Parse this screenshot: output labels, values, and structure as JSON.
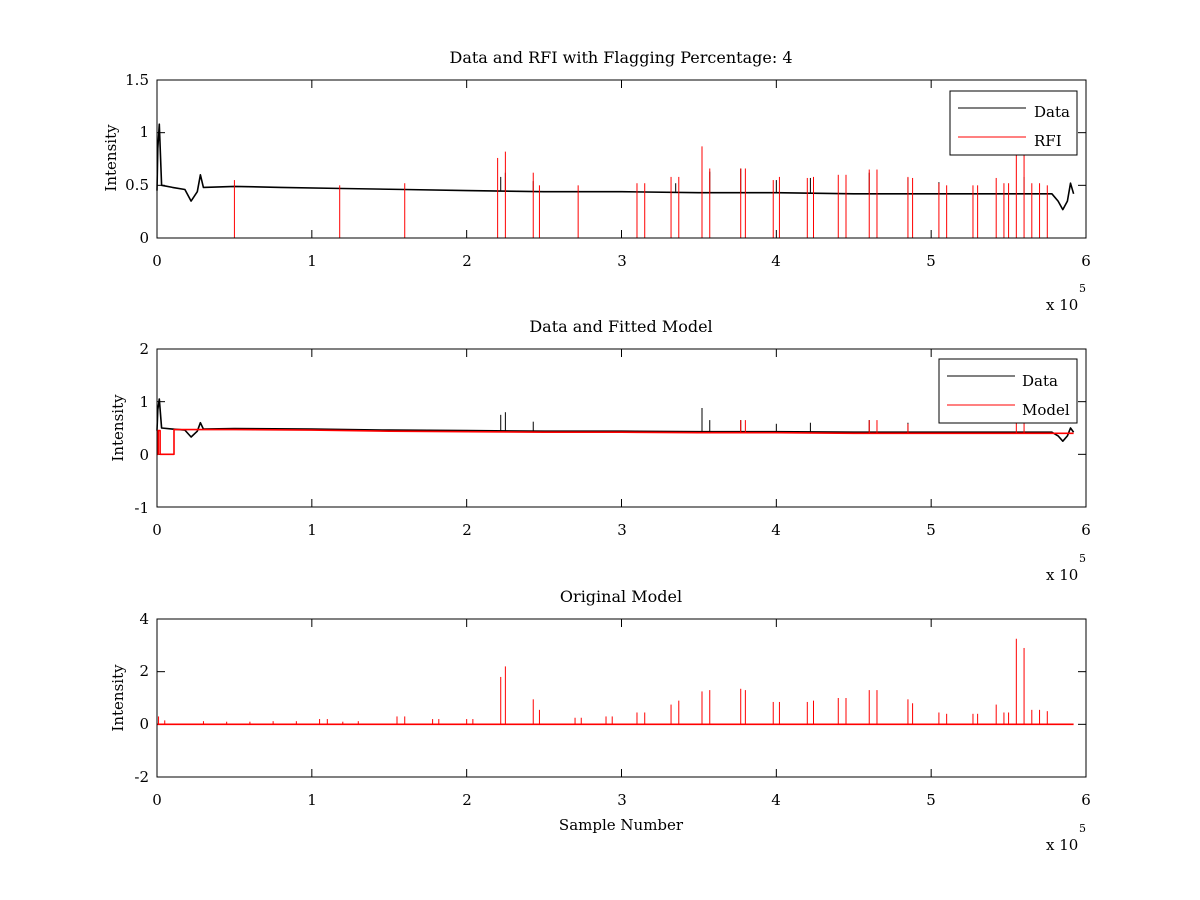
{
  "figure": {
    "background": "#ffffff"
  },
  "colors": {
    "data": "#000000",
    "rfi": "#ff0000",
    "model": "#ff0000",
    "axes": "#000000"
  },
  "chart_data": [
    {
      "type": "line",
      "title": "Data and RFI with Flagging Percentage: 4",
      "xlabel": "",
      "ylabel": "Intensity",
      "xlim": [
        0,
        6
      ],
      "ylim": [
        0,
        1.5
      ],
      "xticks": [
        "0",
        "1",
        "2",
        "3",
        "4",
        "5",
        "6"
      ],
      "yticks": [
        "0",
        "0.5",
        "1",
        "1.5"
      ],
      "x_exponent_label": "x 10",
      "x_exponent_power": "5",
      "legend": {
        "position": "top-right",
        "entries": [
          "Data",
          "RFI"
        ]
      },
      "series": [
        {
          "name": "Data",
          "color": "#000000",
          "baseline": [
            [
              0,
              0.45
            ],
            [
              0.005,
              0.85
            ],
            [
              0.015,
              1.08
            ],
            [
              0.03,
              0.5
            ],
            [
              0.1,
              0.48
            ],
            [
              0.18,
              0.46
            ],
            [
              0.22,
              0.35
            ],
            [
              0.26,
              0.44
            ],
            [
              0.28,
              0.6
            ],
            [
              0.3,
              0.48
            ],
            [
              0.5,
              0.49
            ],
            [
              0.8,
              0.48
            ],
            [
              1.2,
              0.47
            ],
            [
              1.6,
              0.46
            ],
            [
              2.0,
              0.45
            ],
            [
              2.5,
              0.44
            ],
            [
              3.0,
              0.44
            ],
            [
              3.5,
              0.43
            ],
            [
              4.0,
              0.43
            ],
            [
              4.5,
              0.42
            ],
            [
              5.0,
              0.42
            ],
            [
              5.5,
              0.42
            ],
            [
              5.78,
              0.42
            ],
            [
              5.82,
              0.35
            ],
            [
              5.85,
              0.27
            ],
            [
              5.88,
              0.35
            ],
            [
              5.9,
              0.52
            ],
            [
              5.92,
              0.42
            ]
          ],
          "spikes": [
            [
              2.22,
              0.58
            ],
            [
              2.25,
              0.62
            ],
            [
              2.43,
              0.54
            ],
            [
              3.35,
              0.52
            ],
            [
              3.52,
              0.86
            ],
            [
              3.57,
              0.63
            ],
            [
              3.77,
              0.66
            ],
            [
              4.0,
              0.55
            ],
            [
              4.22,
              0.57
            ],
            [
              4.6,
              0.62
            ],
            [
              4.85,
              0.57
            ],
            [
              5.05,
              0.53
            ],
            [
              5.6,
              0.58
            ]
          ]
        },
        {
          "name": "RFI",
          "color": "#ff0000",
          "spikes": [
            [
              0.5,
              0.55
            ],
            [
              1.18,
              0.5
            ],
            [
              1.6,
              0.52
            ],
            [
              2.2,
              0.76
            ],
            [
              2.25,
              0.82
            ],
            [
              2.43,
              0.62
            ],
            [
              2.47,
              0.5
            ],
            [
              2.72,
              0.5
            ],
            [
              3.1,
              0.52
            ],
            [
              3.15,
              0.52
            ],
            [
              3.32,
              0.58
            ],
            [
              3.37,
              0.58
            ],
            [
              3.52,
              0.87
            ],
            [
              3.57,
              0.66
            ],
            [
              3.77,
              0.66
            ],
            [
              3.8,
              0.66
            ],
            [
              3.98,
              0.55
            ],
            [
              4.02,
              0.58
            ],
            [
              4.2,
              0.57
            ],
            [
              4.24,
              0.58
            ],
            [
              4.4,
              0.6
            ],
            [
              4.45,
              0.6
            ],
            [
              4.6,
              0.65
            ],
            [
              4.65,
              0.65
            ],
            [
              4.85,
              0.58
            ],
            [
              4.88,
              0.57
            ],
            [
              5.05,
              0.52
            ],
            [
              5.1,
              0.5
            ],
            [
              5.27,
              0.5
            ],
            [
              5.3,
              0.5
            ],
            [
              5.42,
              0.57
            ],
            [
              5.47,
              0.52
            ],
            [
              5.5,
              0.52
            ],
            [
              5.55,
              0.82
            ],
            [
              5.6,
              0.8
            ],
            [
              5.65,
              0.52
            ],
            [
              5.7,
              0.52
            ],
            [
              5.75,
              0.5
            ]
          ]
        }
      ]
    },
    {
      "type": "line",
      "title": "Data and Fitted Model",
      "xlabel": "",
      "ylabel": "Intensity",
      "xlim": [
        0,
        6
      ],
      "ylim": [
        -1,
        2
      ],
      "xticks": [
        "0",
        "1",
        "2",
        "3",
        "4",
        "5",
        "6"
      ],
      "yticks": [
        "-1",
        "0",
        "1",
        "2"
      ],
      "x_exponent_label": "x 10",
      "x_exponent_power": "5",
      "legend": {
        "position": "top-right",
        "entries": [
          "Data",
          "Model"
        ]
      },
      "series": [
        {
          "name": "Data",
          "color": "#000000",
          "baseline": [
            [
              0,
              0.45
            ],
            [
              0.005,
              0.85
            ],
            [
              0.015,
              1.05
            ],
            [
              0.03,
              0.5
            ],
            [
              0.1,
              0.48
            ],
            [
              0.18,
              0.46
            ],
            [
              0.22,
              0.33
            ],
            [
              0.26,
              0.44
            ],
            [
              0.28,
              0.6
            ],
            [
              0.3,
              0.48
            ],
            [
              0.5,
              0.49
            ],
            [
              1.0,
              0.48
            ],
            [
              1.5,
              0.46
            ],
            [
              2.0,
              0.45
            ],
            [
              2.5,
              0.44
            ],
            [
              3.0,
              0.44
            ],
            [
              3.5,
              0.43
            ],
            [
              4.0,
              0.43
            ],
            [
              4.5,
              0.42
            ],
            [
              5.0,
              0.42
            ],
            [
              5.5,
              0.42
            ],
            [
              5.78,
              0.42
            ],
            [
              5.82,
              0.35
            ],
            [
              5.85,
              0.25
            ],
            [
              5.88,
              0.35
            ],
            [
              5.9,
              0.5
            ],
            [
              5.92,
              0.42
            ]
          ],
          "spikes": [
            [
              2.22,
              0.75
            ],
            [
              2.25,
              0.8
            ],
            [
              2.43,
              0.62
            ],
            [
              3.52,
              0.88
            ],
            [
              3.57,
              0.65
            ],
            [
              3.77,
              0.65
            ],
            [
              4.0,
              0.58
            ],
            [
              4.22,
              0.6
            ],
            [
              4.6,
              0.65
            ],
            [
              4.85,
              0.6
            ]
          ]
        },
        {
          "name": "Model",
          "color": "#ff0000",
          "baseline": [
            [
              0,
              0.0
            ],
            [
              0.008,
              0.0
            ],
            [
              0.008,
              0.45
            ],
            [
              0.02,
              0.45
            ],
            [
              0.02,
              0.0
            ],
            [
              0.11,
              0.0
            ],
            [
              0.11,
              0.47
            ],
            [
              0.5,
              0.47
            ],
            [
              1.0,
              0.46
            ],
            [
              1.5,
              0.44
            ],
            [
              2.0,
              0.43
            ],
            [
              2.5,
              0.42
            ],
            [
              3.0,
              0.42
            ],
            [
              3.5,
              0.41
            ],
            [
              4.0,
              0.41
            ],
            [
              4.5,
              0.4
            ],
            [
              5.0,
              0.4
            ],
            [
              5.5,
              0.4
            ],
            [
              5.92,
              0.4
            ]
          ],
          "spikes": [
            [
              3.77,
              0.65
            ],
            [
              3.8,
              0.65
            ],
            [
              4.6,
              0.65
            ],
            [
              4.65,
              0.65
            ],
            [
              4.85,
              0.58
            ],
            [
              5.55,
              0.7
            ],
            [
              5.6,
              0.68
            ]
          ]
        }
      ]
    },
    {
      "type": "line",
      "title": "Original Model",
      "xlabel": "Sample Number",
      "ylabel": "Intensity",
      "xlim": [
        0,
        6
      ],
      "ylim": [
        -2,
        4
      ],
      "xticks": [
        "0",
        "1",
        "2",
        "3",
        "4",
        "5",
        "6"
      ],
      "yticks": [
        "-2",
        "0",
        "2",
        "4"
      ],
      "x_exponent_label": "x 10",
      "x_exponent_power": "5",
      "series": [
        {
          "color": "#ff0000",
          "baseline": [
            [
              0,
              0.0
            ],
            [
              5.92,
              0.0
            ]
          ],
          "spikes": [
            [
              0.01,
              0.3
            ],
            [
              0.05,
              0.15
            ],
            [
              0.3,
              0.12
            ],
            [
              0.45,
              0.1
            ],
            [
              0.6,
              0.1
            ],
            [
              0.75,
              0.12
            ],
            [
              0.9,
              0.12
            ],
            [
              1.05,
              0.2
            ],
            [
              1.1,
              0.2
            ],
            [
              1.2,
              0.1
            ],
            [
              1.3,
              0.12
            ],
            [
              1.55,
              0.3
            ],
            [
              1.6,
              0.3
            ],
            [
              1.78,
              0.2
            ],
            [
              1.82,
              0.2
            ],
            [
              2.0,
              0.2
            ],
            [
              2.04,
              0.2
            ],
            [
              2.22,
              1.8
            ],
            [
              2.25,
              2.2
            ],
            [
              2.43,
              0.95
            ],
            [
              2.47,
              0.55
            ],
            [
              2.7,
              0.25
            ],
            [
              2.74,
              0.25
            ],
            [
              2.9,
              0.3
            ],
            [
              2.94,
              0.3
            ],
            [
              3.1,
              0.45
            ],
            [
              3.15,
              0.45
            ],
            [
              3.32,
              0.75
            ],
            [
              3.37,
              0.9
            ],
            [
              3.52,
              1.25
            ],
            [
              3.57,
              1.3
            ],
            [
              3.77,
              1.35
            ],
            [
              3.8,
              1.3
            ],
            [
              3.98,
              0.85
            ],
            [
              4.02,
              0.85
            ],
            [
              4.2,
              0.85
            ],
            [
              4.24,
              0.9
            ],
            [
              4.4,
              1.0
            ],
            [
              4.45,
              1.0
            ],
            [
              4.6,
              1.3
            ],
            [
              4.65,
              1.3
            ],
            [
              4.85,
              0.95
            ],
            [
              4.88,
              0.8
            ],
            [
              5.05,
              0.45
            ],
            [
              5.1,
              0.4
            ],
            [
              5.27,
              0.4
            ],
            [
              5.3,
              0.4
            ],
            [
              5.42,
              0.75
            ],
            [
              5.47,
              0.45
            ],
            [
              5.5,
              0.45
            ],
            [
              5.55,
              3.25
            ],
            [
              5.6,
              2.9
            ],
            [
              5.65,
              0.55
            ],
            [
              5.7,
              0.55
            ],
            [
              5.75,
              0.5
            ]
          ]
        }
      ]
    }
  ]
}
